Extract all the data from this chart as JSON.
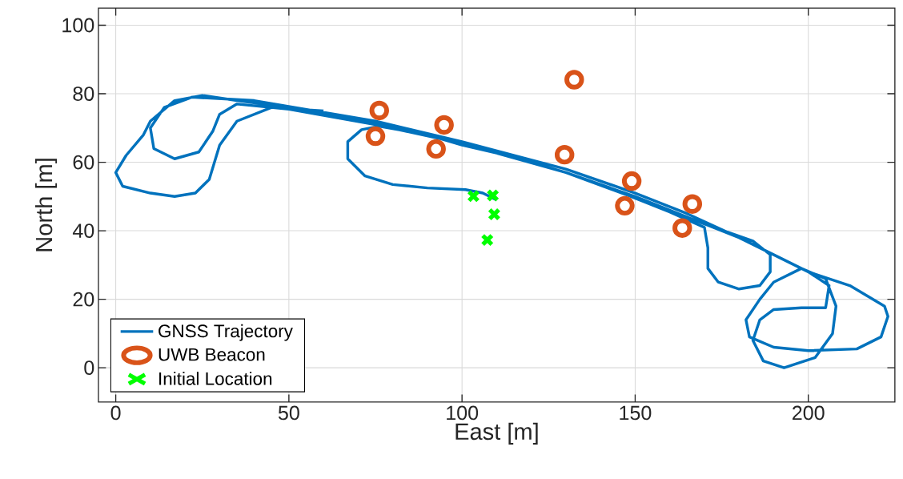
{
  "chart_data": {
    "type": "line",
    "xlabel": "East [m]",
    "ylabel": "North [m]",
    "xlim": [
      -5,
      225
    ],
    "ylim": [
      -10,
      105
    ],
    "xticks": [
      0,
      50,
      100,
      150,
      200
    ],
    "yticks": [
      0,
      20,
      40,
      60,
      80,
      100
    ],
    "grid": true,
    "legend": "bottom left",
    "series": [
      {
        "name": "GNSS Trajectory",
        "color": "#0072bd",
        "marker": "none",
        "line_style": "solid",
        "x": [
          110,
          106,
          101,
          90,
          80,
          72,
          67,
          67,
          71,
          76,
          90,
          100,
          115,
          130,
          145,
          160,
          170,
          171,
          171,
          174,
          180,
          186,
          189,
          189,
          184,
          170,
          150,
          130,
          100,
          75,
          50,
          35,
          30,
          28,
          24,
          17,
          11,
          10,
          14,
          22,
          40,
          75,
          100,
          130,
          150,
          165,
          180,
          190,
          200,
          212,
          222,
          223,
          221,
          214,
          200,
          190,
          183,
          182,
          186,
          190,
          198,
          205,
          208,
          207,
          202,
          193,
          187,
          184,
          186,
          190,
          198,
          205,
          206,
          200,
          180,
          165,
          130,
          100,
          75,
          50,
          35,
          25,
          17,
          10,
          8,
          3,
          0,
          2,
          10,
          17,
          23,
          27,
          30,
          35,
          45,
          60
        ],
        "values": [
          49,
          51,
          52,
          52.5,
          53.5,
          56,
          61,
          66,
          69.5,
          70.5,
          68,
          65,
          61.5,
          57,
          51.5,
          45.5,
          41,
          35,
          29,
          25,
          23,
          24,
          28,
          33,
          37,
          42,
          50,
          57,
          65.5,
          71,
          75.5,
          77,
          74,
          69,
          63,
          61,
          64,
          70,
          76,
          79,
          78,
          72,
          66,
          58,
          51,
          45,
          38,
          33,
          28,
          24,
          18,
          15,
          9,
          5.5,
          5,
          6,
          9,
          14,
          20,
          25,
          29,
          26,
          18,
          10,
          3,
          0,
          2,
          8,
          14,
          17,
          17.5,
          17.5,
          24,
          28,
          38,
          44,
          57,
          65.5,
          71.5,
          76,
          78,
          79.5,
          78,
          72,
          68,
          62,
          57,
          53,
          51,
          50,
          51,
          55,
          65,
          72,
          76,
          75
        ]
      },
      {
        "name": "UWB Beacon",
        "type": "scatter",
        "color": "#d95319",
        "marker": "circle",
        "x": [
          76.1,
          75,
          94.8,
          92.5,
          132.4,
          129.6,
          149,
          147,
          166.5,
          163.6
        ],
        "values": [
          75.1,
          67.6,
          70.9,
          63.9,
          84.1,
          62.2,
          54.5,
          47.3,
          47.8,
          40.8
        ]
      },
      {
        "name": "Initial Location",
        "type": "scatter",
        "color": "#00ff00",
        "marker": "cross",
        "x": [
          103.3,
          108.9,
          109.3,
          107.3
        ],
        "values": [
          50.1,
          50.3,
          44.8,
          37.3
        ]
      }
    ]
  }
}
